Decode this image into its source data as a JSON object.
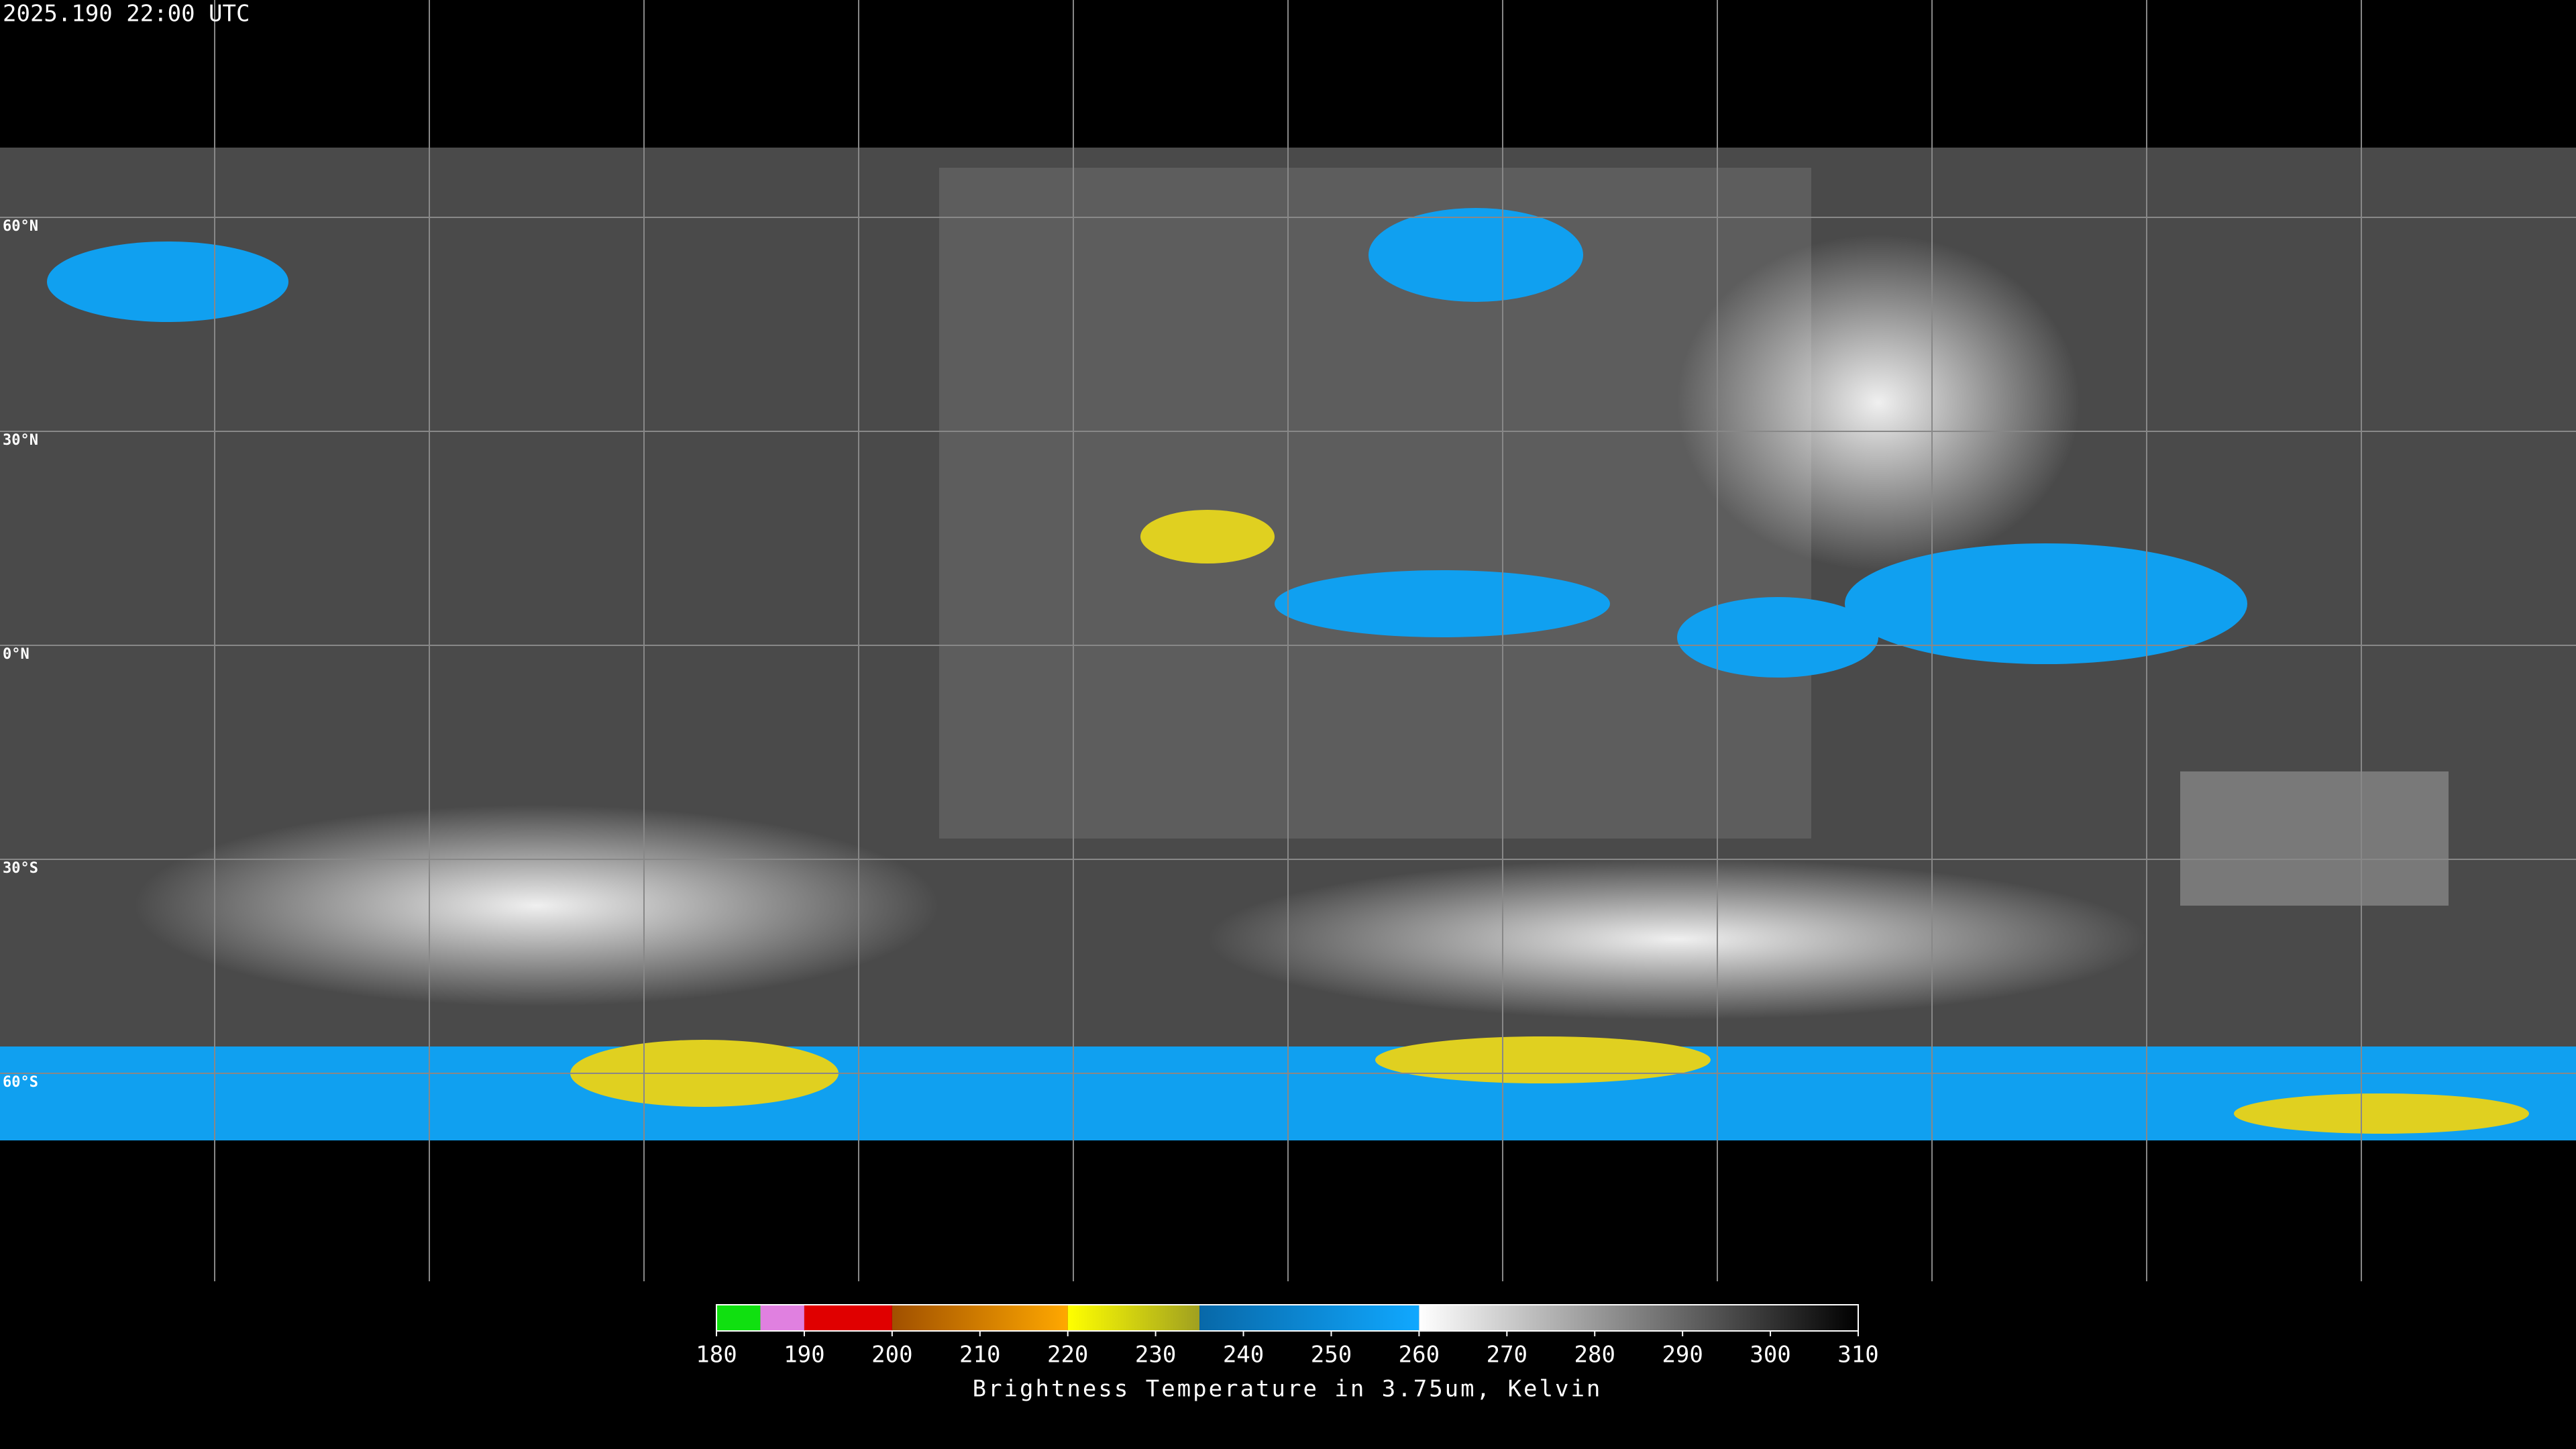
{
  "header": {
    "title": "2025.190 22:00 UTC"
  },
  "map": {
    "lat_lines": [
      {
        "value": 60,
        "label": "60°N"
      },
      {
        "value": 30,
        "label": "30°N"
      },
      {
        "value": 0,
        "label": "0°N"
      },
      {
        "value": -30,
        "label": "30°S"
      },
      {
        "value": -60,
        "label": "60°S"
      }
    ]
  },
  "colorbar": {
    "label": "Brightness Temperature in 3.75um, Kelvin",
    "lim": [
      180,
      310
    ],
    "ticks": [
      180,
      190,
      200,
      210,
      220,
      230,
      240,
      250,
      260,
      270,
      280,
      290,
      300,
      310
    ],
    "segments": [
      {
        "from": 180,
        "to": 185,
        "color_start": "#10e010",
        "color_end": "#10e010"
      },
      {
        "from": 185,
        "to": 190,
        "color_start": "#e080e0",
        "color_end": "#e080e0"
      },
      {
        "from": 190,
        "to": 200,
        "color_start": "#e00000",
        "color_end": "#e00000"
      },
      {
        "from": 200,
        "to": 220,
        "color_start": "#a05000",
        "color_end": "#ffa800"
      },
      {
        "from": 220,
        "to": 235,
        "color_start": "#ffff00",
        "color_end": "#a0a020"
      },
      {
        "from": 235,
        "to": 260,
        "color_start": "#0868a8",
        "color_end": "#10a8ff"
      },
      {
        "from": 260,
        "to": 310,
        "color_start": "#ffffff",
        "color_end": "#000000"
      }
    ]
  }
}
